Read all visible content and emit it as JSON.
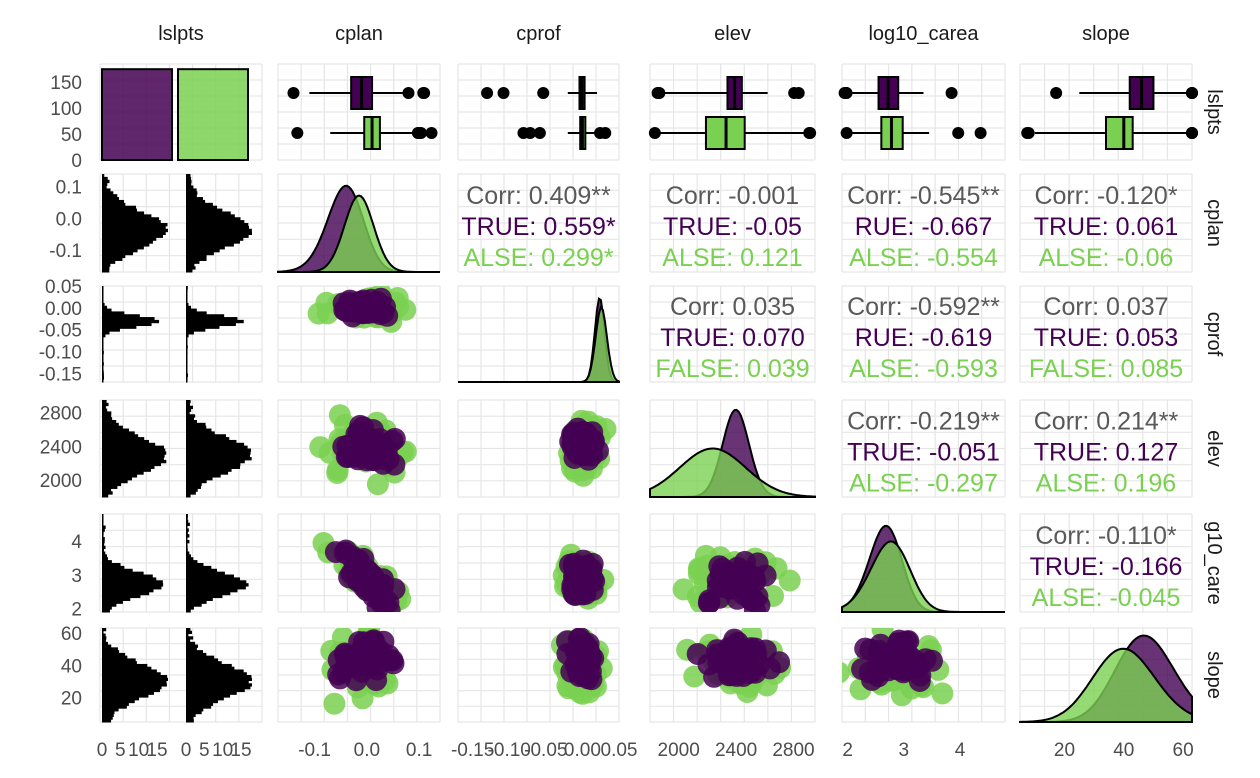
{
  "chart_data": {
    "type": "scatter-matrix",
    "variables": [
      "lslpts",
      "cplan",
      "cprof",
      "elev",
      "log10_carea",
      "slope"
    ],
    "row_labels": [
      "lslpts",
      "cplan",
      "cprof",
      "elev",
      "g10_care",
      "slope"
    ],
    "groups": [
      {
        "name": "TRUE",
        "color": "#440154"
      },
      {
        "name": "FALSE",
        "color": "#7AD151"
      }
    ],
    "colors": {
      "overall": "#595959",
      "TRUE": "#440154",
      "FALSE": "#7AD151",
      "grid": "#e6e6e6"
    },
    "ticks": {
      "lslpts_y": [
        "0",
        "50",
        "100",
        "150"
      ],
      "lslpts_x": [
        "0",
        "5",
        "10",
        "15",
        "0",
        "5",
        "10",
        "15"
      ],
      "cplan_y": [
        "0.1",
        "0.0",
        "-0.1"
      ],
      "cprof_y": [
        "0.05",
        "0.00",
        "-0.05",
        "-0.10",
        "-0.15"
      ],
      "elev_y": [
        "2800",
        "2400",
        "2000"
      ],
      "carea_y": [
        "4",
        "3",
        "2"
      ],
      "slope_y": [
        "60",
        "40",
        "20"
      ],
      "cplan_x": [
        "-0.1",
        "0.0",
        "0.1"
      ],
      "cprof_x": [
        "-0.15",
        "-0.10",
        "-0.05",
        "0.00",
        "0.05"
      ],
      "elev_x": [
        "2000",
        "2400",
        "2800"
      ],
      "carea_x": [
        "2",
        "3",
        "4"
      ],
      "slope_x": [
        "20",
        "40",
        "60"
      ]
    },
    "bars": [
      {
        "group": "TRUE",
        "count": 175
      },
      {
        "group": "FALSE",
        "count": 175
      }
    ],
    "boxplots": [
      {
        "var": "cplan",
        "group": "TRUE",
        "q1": -0.03,
        "median": -0.01,
        "q3": 0.01,
        "whisker_low": -0.11,
        "whisker_high": 0.07
      },
      {
        "var": "cplan",
        "group": "FALSE",
        "q1": -0.005,
        "median": 0.01,
        "q3": 0.025,
        "whisker_low": -0.07,
        "whisker_high": 0.09
      },
      {
        "var": "cprof",
        "group": "TRUE",
        "q1": -0.004,
        "median": -0.001,
        "q3": 0.003,
        "whisker_low": -0.02,
        "whisker_high": 0.02
      },
      {
        "var": "cprof",
        "group": "FALSE",
        "q1": -0.003,
        "median": 0.0,
        "q3": 0.004,
        "whisker_low": -0.02,
        "whisker_high": 0.02
      },
      {
        "var": "elev",
        "group": "TRUE",
        "q1": 2340,
        "median": 2390,
        "q3": 2440,
        "whisker_low": 1900,
        "whisker_high": 2620
      },
      {
        "var": "elev",
        "group": "FALSE",
        "q1": 2190,
        "median": 2330,
        "q3": 2460,
        "whisker_low": 1850,
        "whisker_high": 2900
      },
      {
        "var": "log10_carea",
        "group": "TRUE",
        "q1": 2.55,
        "median": 2.72,
        "q3": 2.9,
        "whisker_low": 2.0,
        "whisker_high": 3.35
      },
      {
        "var": "log10_carea",
        "group": "FALSE",
        "q1": 2.6,
        "median": 2.78,
        "q3": 2.98,
        "whisker_low": 2.0,
        "whisker_high": 3.45
      },
      {
        "var": "slope",
        "group": "TRUE",
        "q1": 42,
        "median": 46,
        "q3": 50,
        "whisker_low": 25,
        "whisker_high": 63
      },
      {
        "var": "slope",
        "group": "FALSE",
        "q1": 34,
        "median": 40,
        "q3": 43,
        "whisker_low": 10,
        "whisker_high": 63
      }
    ],
    "correlations": [
      {
        "row": "cplan",
        "col": "cprof",
        "overall": "Corr: 0.409**",
        "true": "TRUE: 0.559*",
        "false": "ALSE: 0.299*"
      },
      {
        "row": "cplan",
        "col": "elev",
        "overall": "Corr: -0.001",
        "true": "TRUE: -0.05",
        "false": "ALSE: 0.121"
      },
      {
        "row": "cplan",
        "col": "log10_carea",
        "overall": "Corr: -0.545**",
        "true": "RUE: -0.667",
        "false": "ALSE: -0.554"
      },
      {
        "row": "cplan",
        "col": "slope",
        "overall": "Corr: -0.120*",
        "true": "TRUE: 0.061",
        "false": "ALSE: -0.06"
      },
      {
        "row": "cprof",
        "col": "elev",
        "overall": "Corr: 0.035",
        "true": "TRUE: 0.070",
        "false": "FALSE: 0.039"
      },
      {
        "row": "cprof",
        "col": "log10_carea",
        "overall": "Corr: -0.592**",
        "true": "RUE: -0.619",
        "false": "ALSE: -0.593"
      },
      {
        "row": "cprof",
        "col": "slope",
        "overall": "Corr: 0.037",
        "true": "TRUE: 0.053",
        "false": "FALSE: 0.085"
      },
      {
        "row": "elev",
        "col": "log10_carea",
        "overall": "Corr: -0.219**",
        "true": "TRUE: -0.051",
        "false": "ALSE: -0.297"
      },
      {
        "row": "elev",
        "col": "slope",
        "overall": "Corr: 0.214**",
        "true": "TRUE: 0.127",
        "false": "ALSE: 0.196"
      },
      {
        "row": "log10_carea",
        "col": "slope",
        "overall": "Corr: -0.110*",
        "true": "TRUE: -0.166",
        "false": "ALSE: -0.045"
      }
    ]
  }
}
